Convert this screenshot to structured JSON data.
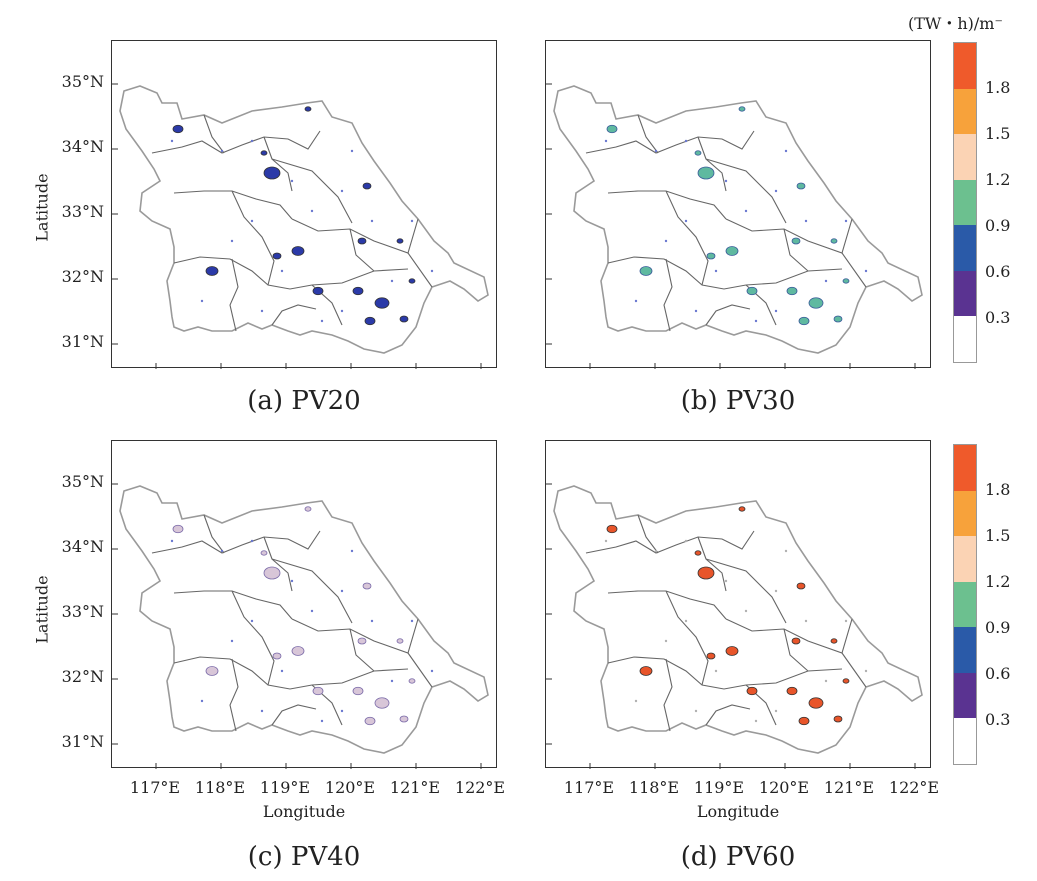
{
  "unit": "(TW・h)/m⁻",
  "panels": [
    {
      "id": "a",
      "caption": "(a) PV20"
    },
    {
      "id": "b",
      "caption": "(b) PV30"
    },
    {
      "id": "c",
      "caption": "(c) PV40"
    },
    {
      "id": "d",
      "caption": "(d) PV60"
    }
  ],
  "axes": {
    "ylabel": "Latitude",
    "xlabel": "Longitude",
    "lat_ticks": [
      "35°N",
      "34°N",
      "33°N",
      "32°N",
      "31°N"
    ],
    "lon_ticks": [
      "117°E",
      "118°E",
      "119°E",
      "120°E",
      "121°E",
      "122°E"
    ]
  },
  "colorbar": {
    "ticks": [
      "1.8",
      "1.5",
      "1.2",
      "0.9",
      "0.6",
      "0.3"
    ],
    "colors": [
      "#ef5a2b",
      "#f7a23b",
      "#fbd3b4",
      "#6cc08f",
      "#2a5aa8",
      "#5a3391",
      "#ffffff"
    ]
  },
  "map_colors": {
    "outline": "#9a9a9a",
    "a": "#2b3aa8",
    "b": "#5fb9a0",
    "c": "#d8c6d8",
    "d": "#e8552a"
  }
}
